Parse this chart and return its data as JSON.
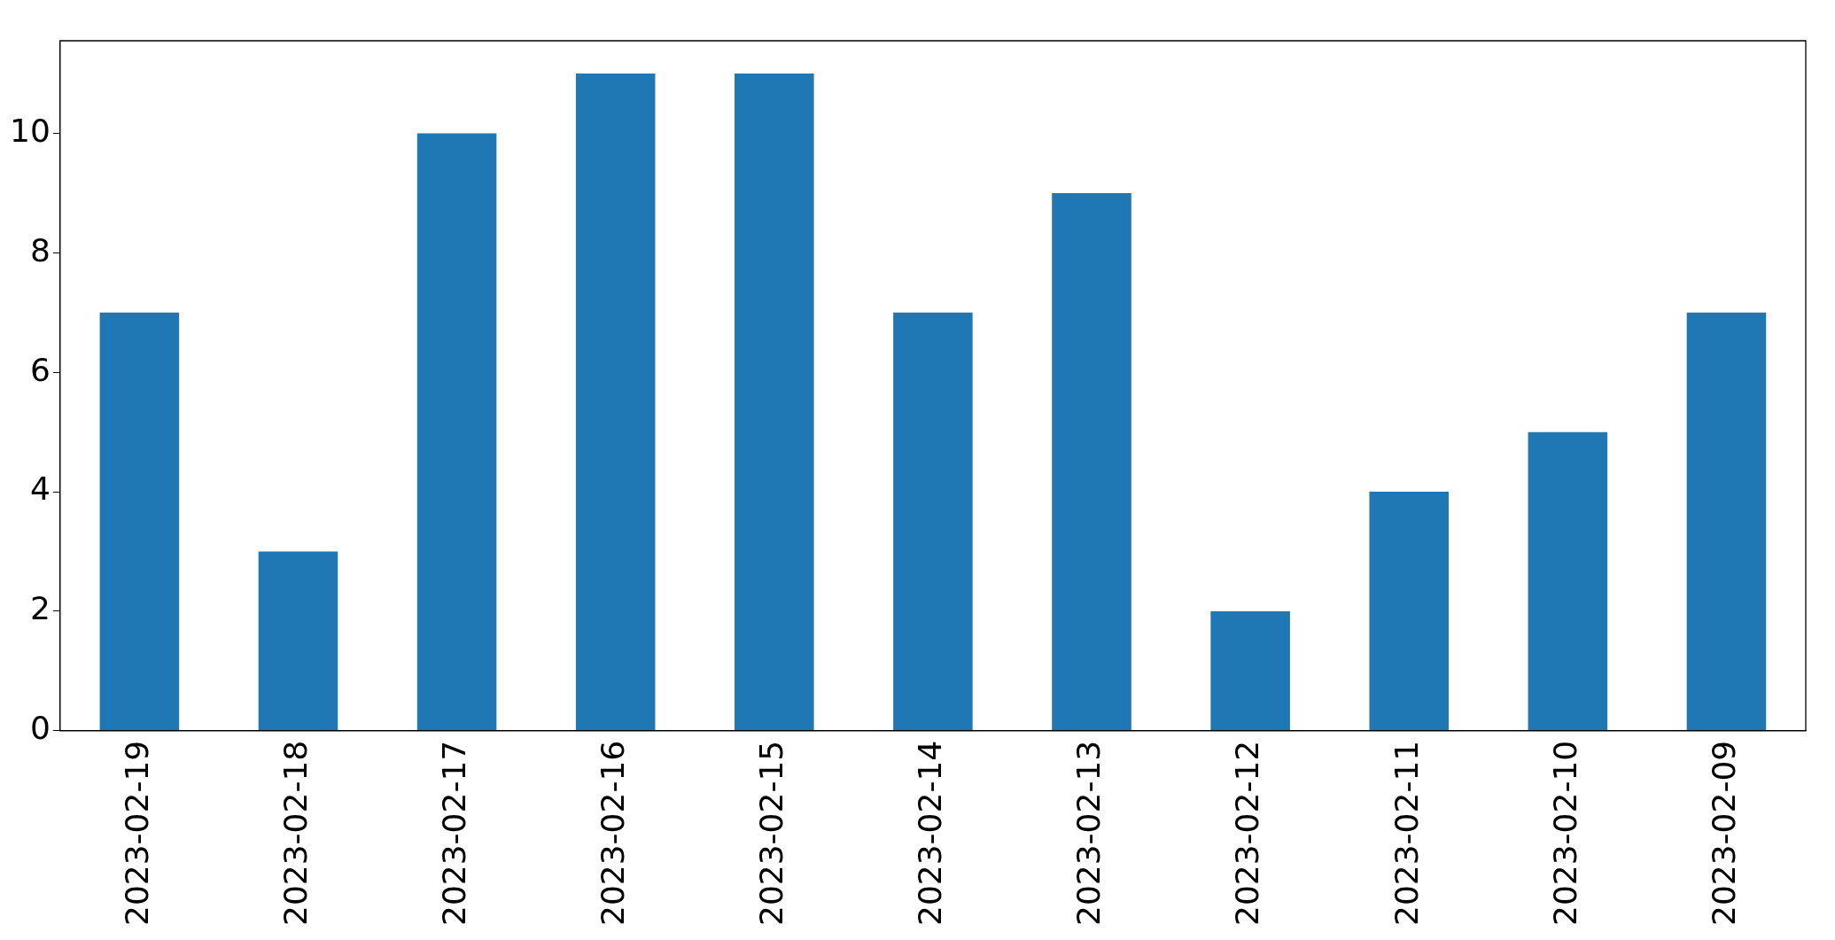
{
  "chart_data": {
    "type": "bar",
    "categories": [
      "2023-02-19",
      "2023-02-18",
      "2023-02-17",
      "2023-02-16",
      "2023-02-15",
      "2023-02-14",
      "2023-02-13",
      "2023-02-12",
      "2023-02-11",
      "2023-02-10",
      "2023-02-09"
    ],
    "values": [
      7,
      3,
      10,
      11,
      11,
      7,
      9,
      2,
      4,
      5,
      7
    ],
    "color": "#1f77b4",
    "ylim": [
      0,
      11.55
    ],
    "yticks": [
      0,
      2,
      4,
      6,
      8,
      10
    ],
    "grid": false,
    "legend": false
  }
}
